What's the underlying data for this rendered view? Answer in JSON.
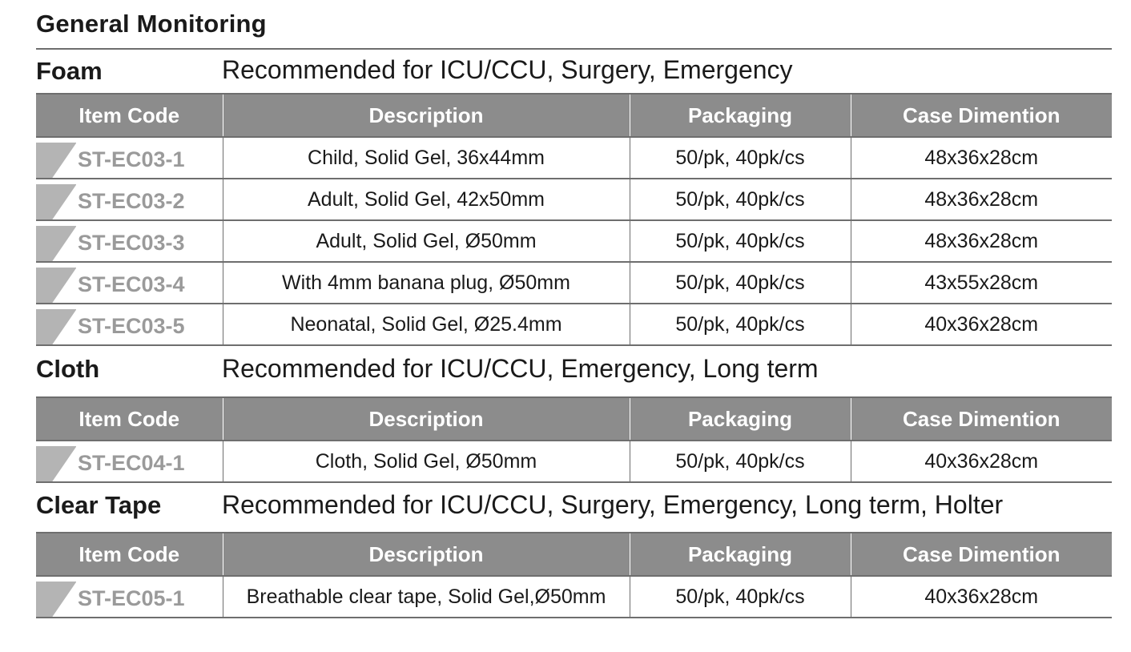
{
  "title": "General Monitoring",
  "headers": {
    "item_code": "Item Code",
    "description": "Description",
    "packaging": "Packaging",
    "case_dimension": "Case Dimention"
  },
  "sections": [
    {
      "name": "Foam",
      "recommendation": "Recommended for ICU/CCU, Surgery, Emergency",
      "rows": [
        {
          "code": "ST-EC03-1",
          "description": "Child, Solid Gel, 36x44mm",
          "packaging": "50/pk, 40pk/cs",
          "case": "48x36x28cm"
        },
        {
          "code": "ST-EC03-2",
          "description": "Adult, Solid Gel, 42x50mm",
          "packaging": "50/pk, 40pk/cs",
          "case": "48x36x28cm"
        },
        {
          "code": "ST-EC03-3",
          "description": "Adult, Solid Gel, Ø50mm",
          "packaging": "50/pk, 40pk/cs",
          "case": "48x36x28cm"
        },
        {
          "code": "ST-EC03-4",
          "description": "With 4mm banana plug, Ø50mm",
          "packaging": "50/pk, 40pk/cs",
          "case": "43x55x28cm"
        },
        {
          "code": "ST-EC03-5",
          "description": "Neonatal, Solid Gel,  Ø25.4mm",
          "packaging": "50/pk, 40pk/cs",
          "case": "40x36x28cm"
        }
      ]
    },
    {
      "name": "Cloth",
      "recommendation": "Recommended for ICU/CCU, Emergency, Long term",
      "rows": [
        {
          "code": "ST-EC04-1",
          "description": "Cloth, Solid Gel, Ø50mm",
          "packaging": "50/pk, 40pk/cs",
          "case": "40x36x28cm"
        }
      ]
    },
    {
      "name": "Clear Tape",
      "recommendation": "Recommended for ICU/CCU, Surgery, Emergency, Long term, Holter",
      "rows": [
        {
          "code": "ST-EC05-1",
          "description": "Breathable clear tape, Solid Gel,Ø50mm",
          "packaging": "50/pk, 40pk/cs",
          "case": "40x36x28cm"
        }
      ]
    }
  ]
}
